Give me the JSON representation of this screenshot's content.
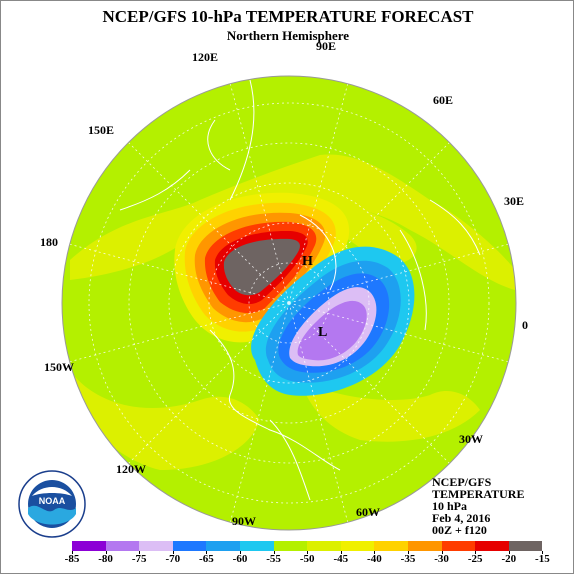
{
  "title": "NCEP/GFS 10-hPa TEMPERATURE FORECAST",
  "subtitle": "Northern Hemisphere",
  "longitude_labels": [
    "90E",
    "60E",
    "30E",
    "0",
    "30W",
    "60W",
    "90W",
    "120W",
    "150W",
    "180",
    "150E",
    "120E"
  ],
  "info": {
    "line1": "NCEP/GFS",
    "line2": "TEMPERATURE",
    "line3": "10 hPa",
    "line4": "Feb 4, 2016",
    "line5": "00Z + f120"
  },
  "colorbar": {
    "labels": [
      "-85",
      "-80",
      "-75",
      "-70",
      "-65",
      "-60",
      "-55",
      "-50",
      "-45",
      "-40",
      "-35",
      "-30",
      "-25",
      "-20",
      "-15"
    ],
    "colors": [
      "#8c00d6",
      "#b478f0",
      "#dcbef5",
      "#1e78ff",
      "#1ea0f0",
      "#1ec8f0",
      "#b4f000",
      "#dcf000",
      "#f0f000",
      "#ffd200",
      "#ff9600",
      "#ff3c00",
      "#e60000",
      "#6e6462"
    ]
  },
  "map_labels": {
    "high": "H",
    "low": "L"
  },
  "logo_text": "NOAA",
  "colors": {
    "background_field": "#b4f000",
    "coast": "#ffffff"
  }
}
